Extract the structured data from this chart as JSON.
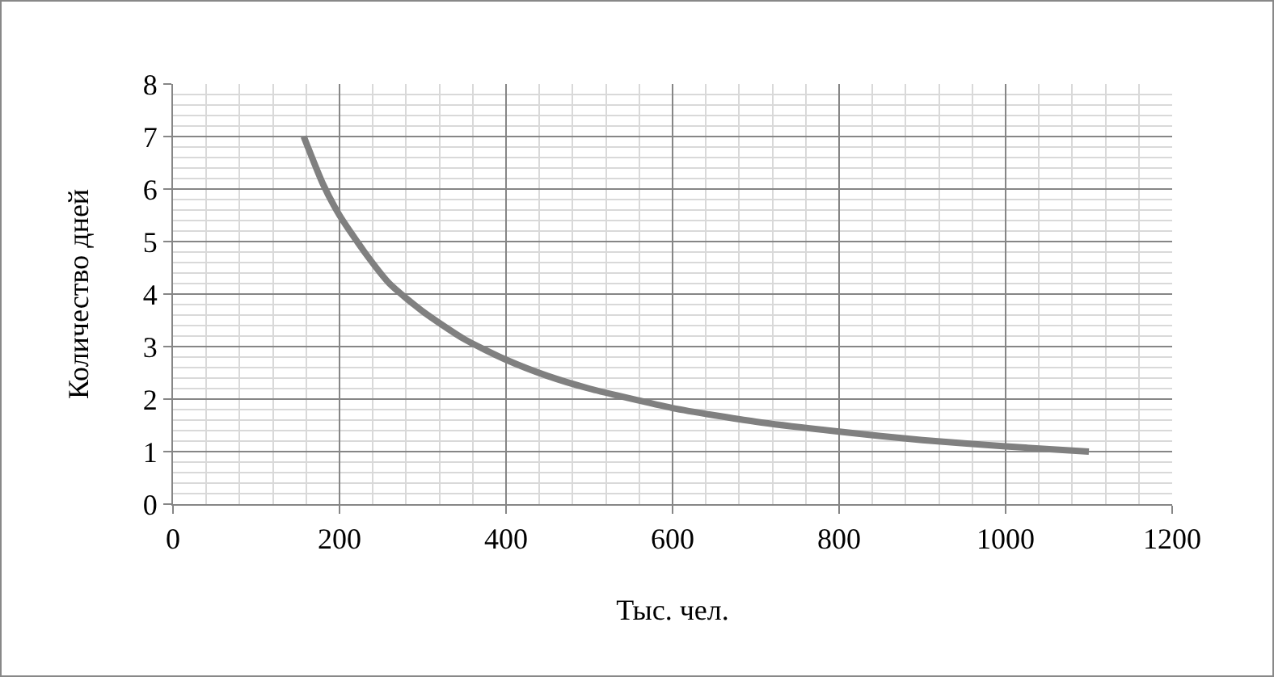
{
  "chart_data": {
    "type": "line",
    "xlabel": "Тыс. чел.",
    "ylabel": "Количество дней",
    "x": [
      157,
      180,
      200,
      230,
      260,
      300,
      350,
      400,
      450,
      500,
      600,
      700,
      800,
      900,
      1000,
      1100
    ],
    "series": [
      {
        "color": "#808080",
        "values": [
          7.0,
          6.1,
          5.5,
          4.8,
          4.2,
          3.67,
          3.14,
          2.75,
          2.44,
          2.2,
          1.83,
          1.57,
          1.38,
          1.22,
          1.1,
          1.0
        ]
      }
    ],
    "xlim": [
      0,
      1200
    ],
    "xticks": [
      0,
      200,
      400,
      600,
      800,
      1000,
      1200
    ],
    "ylim": [
      0,
      8
    ],
    "yticks": [
      0,
      1,
      2,
      3,
      4,
      5,
      6,
      7,
      8
    ],
    "grid": true,
    "marker": "none",
    "line_style": "solid"
  }
}
